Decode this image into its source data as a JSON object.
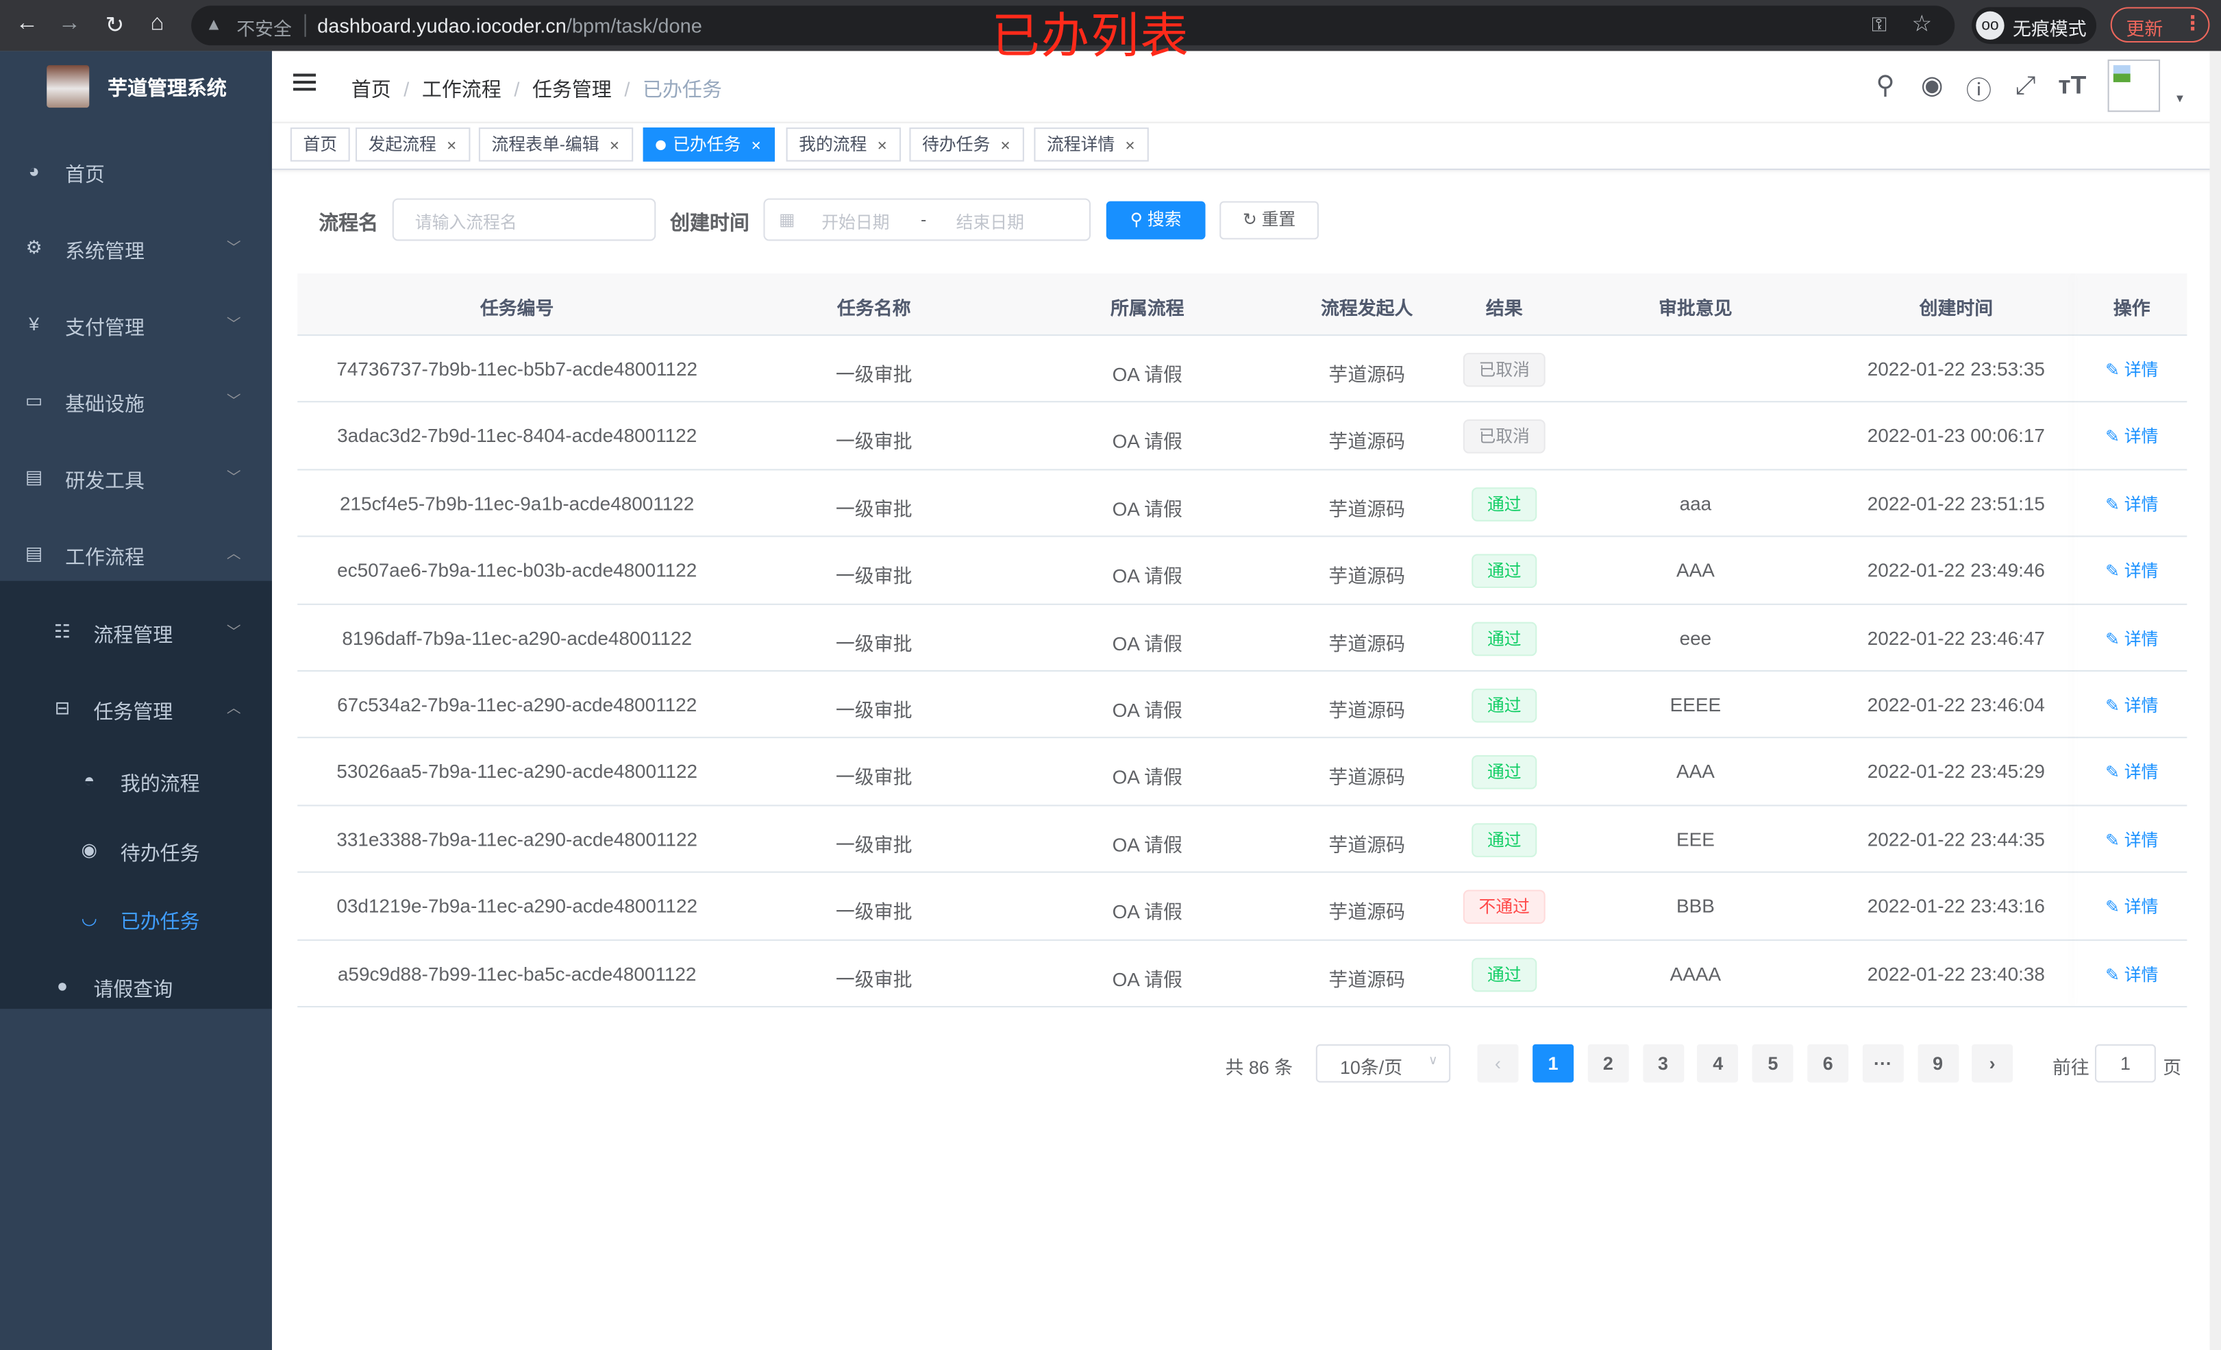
{
  "browser": {
    "insecure_label": "不安全",
    "url_host": "dashboard.yudao.iocoder.cn",
    "url_path": "/bpm/task/done",
    "incognito_label": "无痕模式",
    "update_label": "更新"
  },
  "overlay_title": "已办列表",
  "sidebar": {
    "app_title": "芋道管理系统",
    "items": [
      {
        "label": "首页",
        "icon": "dashboard-icon"
      },
      {
        "label": "系统管理",
        "icon": "gear-icon"
      },
      {
        "label": "支付管理",
        "icon": "yen-icon"
      },
      {
        "label": "基础设施",
        "icon": "monitor-icon"
      },
      {
        "label": "研发工具",
        "icon": "toolbox-icon"
      },
      {
        "label": "工作流程",
        "icon": "toolbox-icon",
        "expanded": true
      }
    ],
    "sub_items": [
      {
        "label": "流程管理",
        "icon": "tree-list-icon"
      },
      {
        "label": "任务管理",
        "icon": "tree-icon",
        "expanded": true
      }
    ],
    "task_items": [
      {
        "label": "我的流程",
        "icon": "chat-icon"
      },
      {
        "label": "待办任务",
        "icon": "eye-icon"
      },
      {
        "label": "已办任务",
        "icon": "eye-closed-icon",
        "active": true
      }
    ],
    "leave_item": {
      "label": "请假查询",
      "icon": "user-icon"
    }
  },
  "breadcrumb": [
    "首页",
    "工作流程",
    "任务管理",
    "已办任务"
  ],
  "tags": [
    {
      "label": "首页",
      "closable": false
    },
    {
      "label": "发起流程",
      "closable": true
    },
    {
      "label": "流程表单-编辑",
      "closable": true
    },
    {
      "label": "已办任务",
      "closable": true,
      "active": true
    },
    {
      "label": "我的流程",
      "closable": true
    },
    {
      "label": "待办任务",
      "closable": true
    },
    {
      "label": "流程详情",
      "closable": true
    }
  ],
  "search": {
    "name_label": "流程名",
    "name_placeholder": "请输入流程名",
    "time_label": "创建时间",
    "start_placeholder": "开始日期",
    "range_sep": "-",
    "end_placeholder": "结束日期",
    "search_button": "搜索",
    "reset_button": "重置"
  },
  "table": {
    "columns": [
      "任务编号",
      "任务名称",
      "所属流程",
      "流程发起人",
      "结果",
      "审批意见",
      "创建时间",
      "操作"
    ],
    "action_label": "详情",
    "rows": [
      {
        "id": "74736737-7b9b-11ec-b5b7-acde48001122",
        "name": "一级审批",
        "process": "OA 请假",
        "starter": "芋道源码",
        "result": "已取消",
        "status": "info",
        "comment": "",
        "time": "2022-01-22 23:53:35"
      },
      {
        "id": "3adac3d2-7b9d-11ec-8404-acde48001122",
        "name": "一级审批",
        "process": "OA 请假",
        "starter": "芋道源码",
        "result": "已取消",
        "status": "info",
        "comment": "",
        "time": "2022-01-23 00:06:17"
      },
      {
        "id": "215cf4e5-7b9b-11ec-9a1b-acde48001122",
        "name": "一级审批",
        "process": "OA 请假",
        "starter": "芋道源码",
        "result": "通过",
        "status": "success",
        "comment": "aaa",
        "time": "2022-01-22 23:51:15"
      },
      {
        "id": "ec507ae6-7b9a-11ec-b03b-acde48001122",
        "name": "一级审批",
        "process": "OA 请假",
        "starter": "芋道源码",
        "result": "通过",
        "status": "success",
        "comment": "AAA",
        "time": "2022-01-22 23:49:46"
      },
      {
        "id": "8196daff-7b9a-11ec-a290-acde48001122",
        "name": "一级审批",
        "process": "OA 请假",
        "starter": "芋道源码",
        "result": "通过",
        "status": "success",
        "comment": "eee",
        "time": "2022-01-22 23:46:47"
      },
      {
        "id": "67c534a2-7b9a-11ec-a290-acde48001122",
        "name": "一级审批",
        "process": "OA 请假",
        "starter": "芋道源码",
        "result": "通过",
        "status": "success",
        "comment": "EEEE",
        "time": "2022-01-22 23:46:04"
      },
      {
        "id": "53026aa5-7b9a-11ec-a290-acde48001122",
        "name": "一级审批",
        "process": "OA 请假",
        "starter": "芋道源码",
        "result": "通过",
        "status": "success",
        "comment": "AAA",
        "time": "2022-01-22 23:45:29"
      },
      {
        "id": "331e3388-7b9a-11ec-a290-acde48001122",
        "name": "一级审批",
        "process": "OA 请假",
        "starter": "芋道源码",
        "result": "通过",
        "status": "success",
        "comment": "EEE",
        "time": "2022-01-22 23:44:35"
      },
      {
        "id": "03d1219e-7b9a-11ec-a290-acde48001122",
        "name": "一级审批",
        "process": "OA 请假",
        "starter": "芋道源码",
        "result": "不通过",
        "status": "danger",
        "comment": "BBB",
        "time": "2022-01-22 23:43:16"
      },
      {
        "id": "a59c9d88-7b99-11ec-ba5c-acde48001122",
        "name": "一级审批",
        "process": "OA 请假",
        "starter": "芋道源码",
        "result": "通过",
        "status": "success",
        "comment": "AAAA",
        "time": "2022-01-22 23:40:38"
      }
    ]
  },
  "pagination": {
    "total_label": "共 86 条",
    "page_size": "10条/页",
    "pages": [
      "1",
      "2",
      "3",
      "4",
      "5",
      "6",
      "···",
      "9"
    ],
    "current": "1",
    "goto_label": "前往",
    "goto_value": "1",
    "page_unit": "页"
  },
  "colors": {
    "primary": "#1890ff",
    "sidebar_bg": "#304156",
    "submenu_bg": "#1f2d3d",
    "active_menu": "#409eff",
    "success": "#13ce66",
    "danger": "#ff4949",
    "overlay_red": "#ff2a1a"
  }
}
